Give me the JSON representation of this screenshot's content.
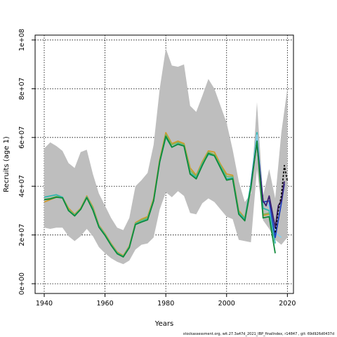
{
  "chart_data": {
    "type": "line",
    "xlabel": "Years",
    "ylabel": "Recruits (age 1)",
    "xlim": [
      1937,
      2022
    ],
    "ylim": [
      -4000000,
      102000000
    ],
    "xticks": [
      1940,
      1960,
      1980,
      2000,
      2020
    ],
    "xtick_labels": [
      "1940",
      "1960",
      "1980",
      "2000",
      "2020"
    ],
    "yticks": [
      0,
      20000000,
      40000000,
      60000000,
      80000000,
      100000000
    ],
    "ytick_labels": [
      "0e+00",
      "2e+07",
      "4e+07",
      "6e+07",
      "8e+07",
      "1e+08"
    ],
    "grid": true,
    "grid_style": "dotted",
    "band": {
      "color": "#bebebe",
      "x": [
        1940,
        1942,
        1944,
        1946,
        1948,
        1950,
        1952,
        1954,
        1956,
        1958,
        1960,
        1962,
        1964,
        1966,
        1968,
        1970,
        1972,
        1974,
        1976,
        1978,
        1980,
        1982,
        1984,
        1986,
        1988,
        1990,
        1992,
        1994,
        1996,
        1998,
        2000,
        2002,
        2004,
        2006,
        2008,
        2010,
        2012,
        2014,
        2016,
        2018,
        2020
      ],
      "upper": [
        55500000,
        58000000,
        56500000,
        54500000,
        49500000,
        47500000,
        54000000,
        55000000,
        45000000,
        37000000,
        32000000,
        27000000,
        23000000,
        22000000,
        27000000,
        40000000,
        42500000,
        45500000,
        57000000,
        80000000,
        96500000,
        89500000,
        89000000,
        90000000,
        73000000,
        70500000,
        77000000,
        84000000,
        80000000,
        73000000,
        66000000,
        55000000,
        42000000,
        33500000,
        37000000,
        74500000,
        36000000,
        47000000,
        35000000,
        62000000,
        80000000
      ],
      "lower": [
        23000000,
        22500000,
        23000000,
        23000000,
        19500000,
        17500000,
        19500000,
        22500000,
        19500000,
        15000000,
        12500000,
        10500000,
        9000000,
        8000000,
        9500000,
        14000000,
        16000000,
        16500000,
        19000000,
        30500000,
        37500000,
        35500000,
        38000000,
        36000000,
        29000000,
        28500000,
        33000000,
        35000000,
        33500000,
        30500000,
        27500000,
        26500000,
        18000000,
        17500000,
        17000000,
        47000000,
        26000000,
        22500000,
        18000000,
        16000000,
        19000000
      ]
    },
    "series": [
      {
        "color": "#d19a2a",
        "x": [
          1940,
          1942,
          1944,
          1946,
          1948,
          1950,
          1952,
          1954,
          1956,
          1958,
          1960,
          1962,
          1964,
          1966,
          1968,
          1970,
          1972,
          1974,
          1976,
          1978,
          1980,
          1982,
          1984,
          1986,
          1988,
          1990,
          1992,
          1994,
          1996,
          1998,
          2000,
          2002,
          2004,
          2006,
          2008,
          2010,
          2012,
          2014
        ],
        "values": [
          33500000,
          34500000,
          35500000,
          35500000,
          31000000,
          28500000,
          31000000,
          36000000,
          31500000,
          24000000,
          20500000,
          16500000,
          13000000,
          11500000,
          15500000,
          25000000,
          26500000,
          27500000,
          35000000,
          51000000,
          62000000,
          57500000,
          58500000,
          57500000,
          47500000,
          44500000,
          50000000,
          54500000,
          54000000,
          49000000,
          45000000,
          44500000,
          30000000,
          27000000,
          40000000,
          60000000,
          28000000,
          28500000
        ]
      },
      {
        "color": "#7fb55f",
        "x": [
          1940,
          1942,
          1944,
          1946,
          1948,
          1950,
          1952,
          1954,
          1956,
          1958,
          1960,
          1962,
          1964,
          1966,
          1968,
          1970,
          1972,
          1974,
          1976,
          1978,
          1980,
          1982,
          1984,
          1986,
          1988,
          1990,
          1992,
          1994,
          1996,
          1998,
          2000,
          2002,
          2004,
          2006,
          2008,
          2010,
          2012,
          2014
        ],
        "values": [
          34500000,
          35000000,
          35800000,
          35500000,
          30500000,
          28200000,
          30800000,
          35700000,
          31000000,
          23700000,
          20200000,
          16200000,
          12700000,
          11300000,
          15200000,
          24700000,
          26100000,
          27000000,
          34500000,
          50500000,
          61200000,
          57000000,
          58000000,
          57000000,
          46500000,
          44000000,
          49500000,
          54000000,
          53000000,
          48500000,
          44000000,
          44000000,
          29500000,
          26800000,
          40500000,
          59000000,
          28500000,
          29000000
        ]
      },
      {
        "color": "#2fb7b0",
        "x": [
          1940,
          1942,
          1944,
          1946,
          1948,
          1950,
          1952,
          1954,
          1956,
          1958,
          1960,
          1962,
          1964,
          1966,
          1968,
          1970,
          1972,
          1974,
          1976,
          1978,
          1980,
          1982,
          1984,
          1986,
          1988,
          1990,
          1992,
          1994,
          1996,
          1998,
          2000,
          2002,
          2004,
          2006,
          2008,
          2010,
          2012,
          2014,
          2016
        ],
        "values": [
          35500000,
          36000000,
          36500000,
          35500000,
          30000000,
          28000000,
          30500000,
          35500000,
          30500000,
          23500000,
          20000000,
          16000000,
          12500000,
          11000000,
          15000000,
          24500000,
          25500000,
          26500000,
          34000000,
          50000000,
          60000000,
          56000000,
          57500000,
          56500000,
          45500000,
          43500000,
          49000000,
          53000000,
          52500000,
          48000000,
          43000000,
          43500000,
          29000000,
          26500000,
          41000000,
          62000000,
          31000000,
          30000000,
          16500000
        ]
      },
      {
        "color": "#87ceeb",
        "x": [
          2008,
          2010,
          2012,
          2014,
          2016,
          2018
        ],
        "values": [
          40000000,
          61000000,
          34000000,
          32000000,
          21000000,
          19000000
        ]
      },
      {
        "color": "#1f3fbf",
        "x": [
          2008,
          2010,
          2012,
          2014,
          2016,
          2018,
          2019
        ],
        "values": [
          40500000,
          58500000,
          33500000,
          34000000,
          19000000,
          33000000,
          41000000
        ]
      },
      {
        "color": "#3b1f6e",
        "x": [
          2010,
          2012,
          2013,
          2014,
          2016,
          2017,
          2018,
          2019
        ],
        "values": [
          57000000,
          34000000,
          32000000,
          36000000,
          23000000,
          32000000,
          34000000,
          42000000
        ]
      },
      {
        "color": "#108a3a",
        "x": [
          1940,
          1942,
          1944,
          1946,
          1948,
          1950,
          1952,
          1954,
          1956,
          1958,
          1960,
          1962,
          1964,
          1966,
          1968,
          1970,
          1972,
          1974,
          1976,
          1978,
          1980,
          1982,
          1984,
          1986,
          1988,
          1990,
          1992,
          1994,
          1996,
          1998,
          2000,
          2002,
          2004,
          2006,
          2008,
          2010,
          2012,
          2014,
          2016
        ],
        "values": [
          34500000,
          34800000,
          35500000,
          35200000,
          30000000,
          27800000,
          30500000,
          35300000,
          30200000,
          23200000,
          19800000,
          15800000,
          12300000,
          11000000,
          14800000,
          24300000,
          25300000,
          26200000,
          34000000,
          50000000,
          60500000,
          56000000,
          57200000,
          56500000,
          45000000,
          43000000,
          48500000,
          53500000,
          52500000,
          47500000,
          42500000,
          43000000,
          28500000,
          25800000,
          39500000,
          58500000,
          27000000,
          27500000,
          12500000
        ]
      },
      {
        "color": "#000000",
        "dashed": true,
        "x": [
          2016,
          2017,
          2018,
          2019,
          2020
        ],
        "values": [
          21000000,
          30000000,
          36000000,
          48500000,
          42000000
        ]
      }
    ]
  },
  "footnote": "stockassessment.org, wit.27.3a47d_2021_IBP_finalIndex, r14847 , git: 69d926d0437d"
}
